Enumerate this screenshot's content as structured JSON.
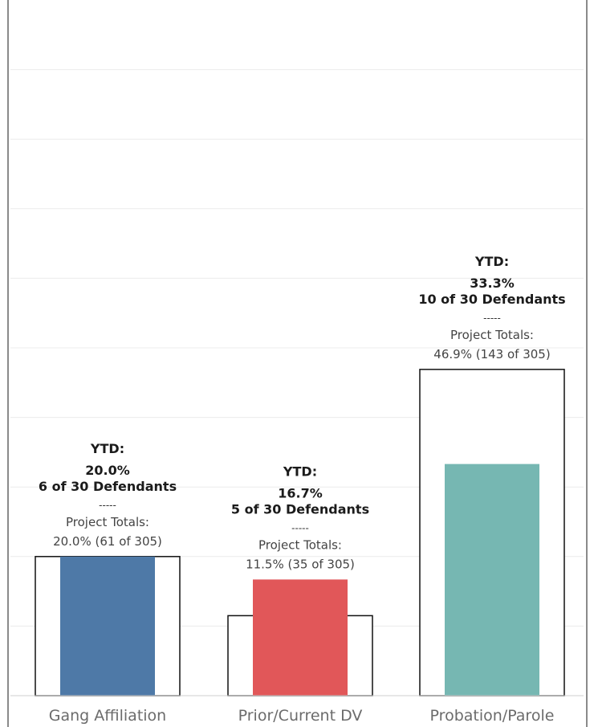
{
  "chart_data": {
    "type": "bar",
    "categories": [
      "Gang Affiliation",
      "Prior/Current DV",
      "Probation/Parole"
    ],
    "series": [
      {
        "values": [
          20.0,
          16.7,
          33.3
        ],
        "colors": [
          "#4e79a7",
          "#e15759",
          "#76b7b2"
        ]
      },
      {
        "values": [
          20.0,
          11.5,
          46.9
        ]
      }
    ],
    "ylim": [
      0,
      95
    ],
    "grid": true,
    "legend": "none",
    "labels": [
      {
        "ytd_heading": "YTD:",
        "ytd_pct": "20.0%",
        "ytd_count": "6 of 30 Defendants",
        "separator": "-----",
        "project_heading": "Project Totals:",
        "project_value": "20.0% (61 of 305)"
      },
      {
        "ytd_heading": "YTD:",
        "ytd_pct": "16.7%",
        "ytd_count": "5 of 30 Defendants",
        "separator": "-----",
        "project_heading": "Project Totals:",
        "project_value": "11.5% (35 of 305)"
      },
      {
        "ytd_heading": "YTD:",
        "ytd_pct": "33.3%",
        "ytd_count": "10 of 30 Defendants",
        "separator": "-----",
        "project_heading": "Project Totals:",
        "project_value": "46.9% (143 of 305)"
      }
    ]
  }
}
